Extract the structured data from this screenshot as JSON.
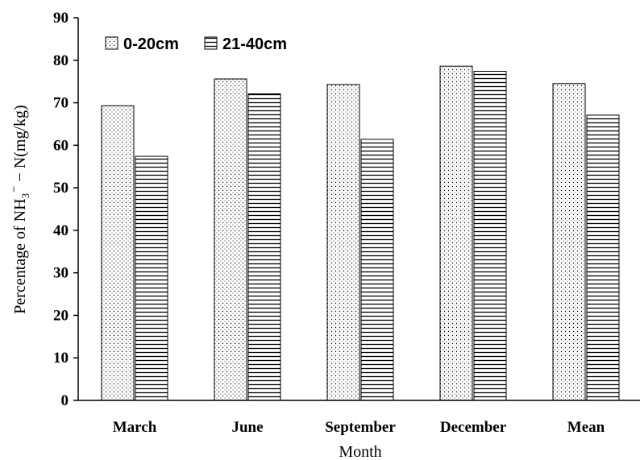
{
  "chart_data": {
    "type": "bar",
    "title": "",
    "xlabel": "Month",
    "ylabel": {
      "prefix": "Percentage of NH",
      "subscript": "3",
      "superscript": "−",
      "suffix": " − N(mg/kg)"
    },
    "ylim": [
      0,
      90
    ],
    "yticks": [
      0,
      10,
      20,
      30,
      40,
      50,
      60,
      70,
      80,
      90
    ],
    "categories": [
      "March",
      "June",
      "September",
      "December",
      "Mean"
    ],
    "series": [
      {
        "name": "0-20cm",
        "pattern": "dots",
        "values": [
          69.3,
          75.6,
          74.3,
          78.6,
          74.5
        ]
      },
      {
        "name": "21-40cm",
        "pattern": "horizontal-lines",
        "values": [
          57.4,
          72.1,
          61.4,
          77.4,
          67.1
        ]
      }
    ],
    "legend_position": "top-left",
    "grid": false
  }
}
